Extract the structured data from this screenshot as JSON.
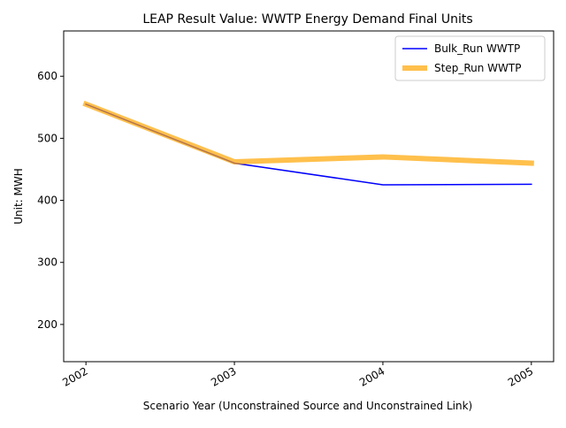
{
  "chart_data": {
    "type": "line",
    "title": "LEAP Result Value: WWTP Energy Demand Final Units",
    "xlabel": "Scenario Year (Unconstrained Source and Unconstrained Link)",
    "ylabel": "Unit: MWH",
    "x": [
      2002,
      2003,
      2004,
      2005
    ],
    "x_tick_labels": [
      "2002",
      "2003",
      "2004",
      "2005"
    ],
    "xlim": [
      2001.85,
      2005.15
    ],
    "ylim": [
      140,
      673
    ],
    "y_ticks": [
      200,
      300,
      400,
      500,
      600
    ],
    "y_tick_labels": [
      "200",
      "300",
      "400",
      "500",
      "600"
    ],
    "grid": false,
    "legend_position": "upper right",
    "series": [
      {
        "name": "Bulk_Run WWTP",
        "values": [
          555,
          460,
          425,
          426
        ],
        "color": "#0000ff",
        "style": "thin"
      },
      {
        "name": "Step_Run WWTP",
        "values": [
          555,
          462,
          470,
          460
        ],
        "color": "#ffa500",
        "opacity": 0.7,
        "style": "thick"
      }
    ]
  }
}
